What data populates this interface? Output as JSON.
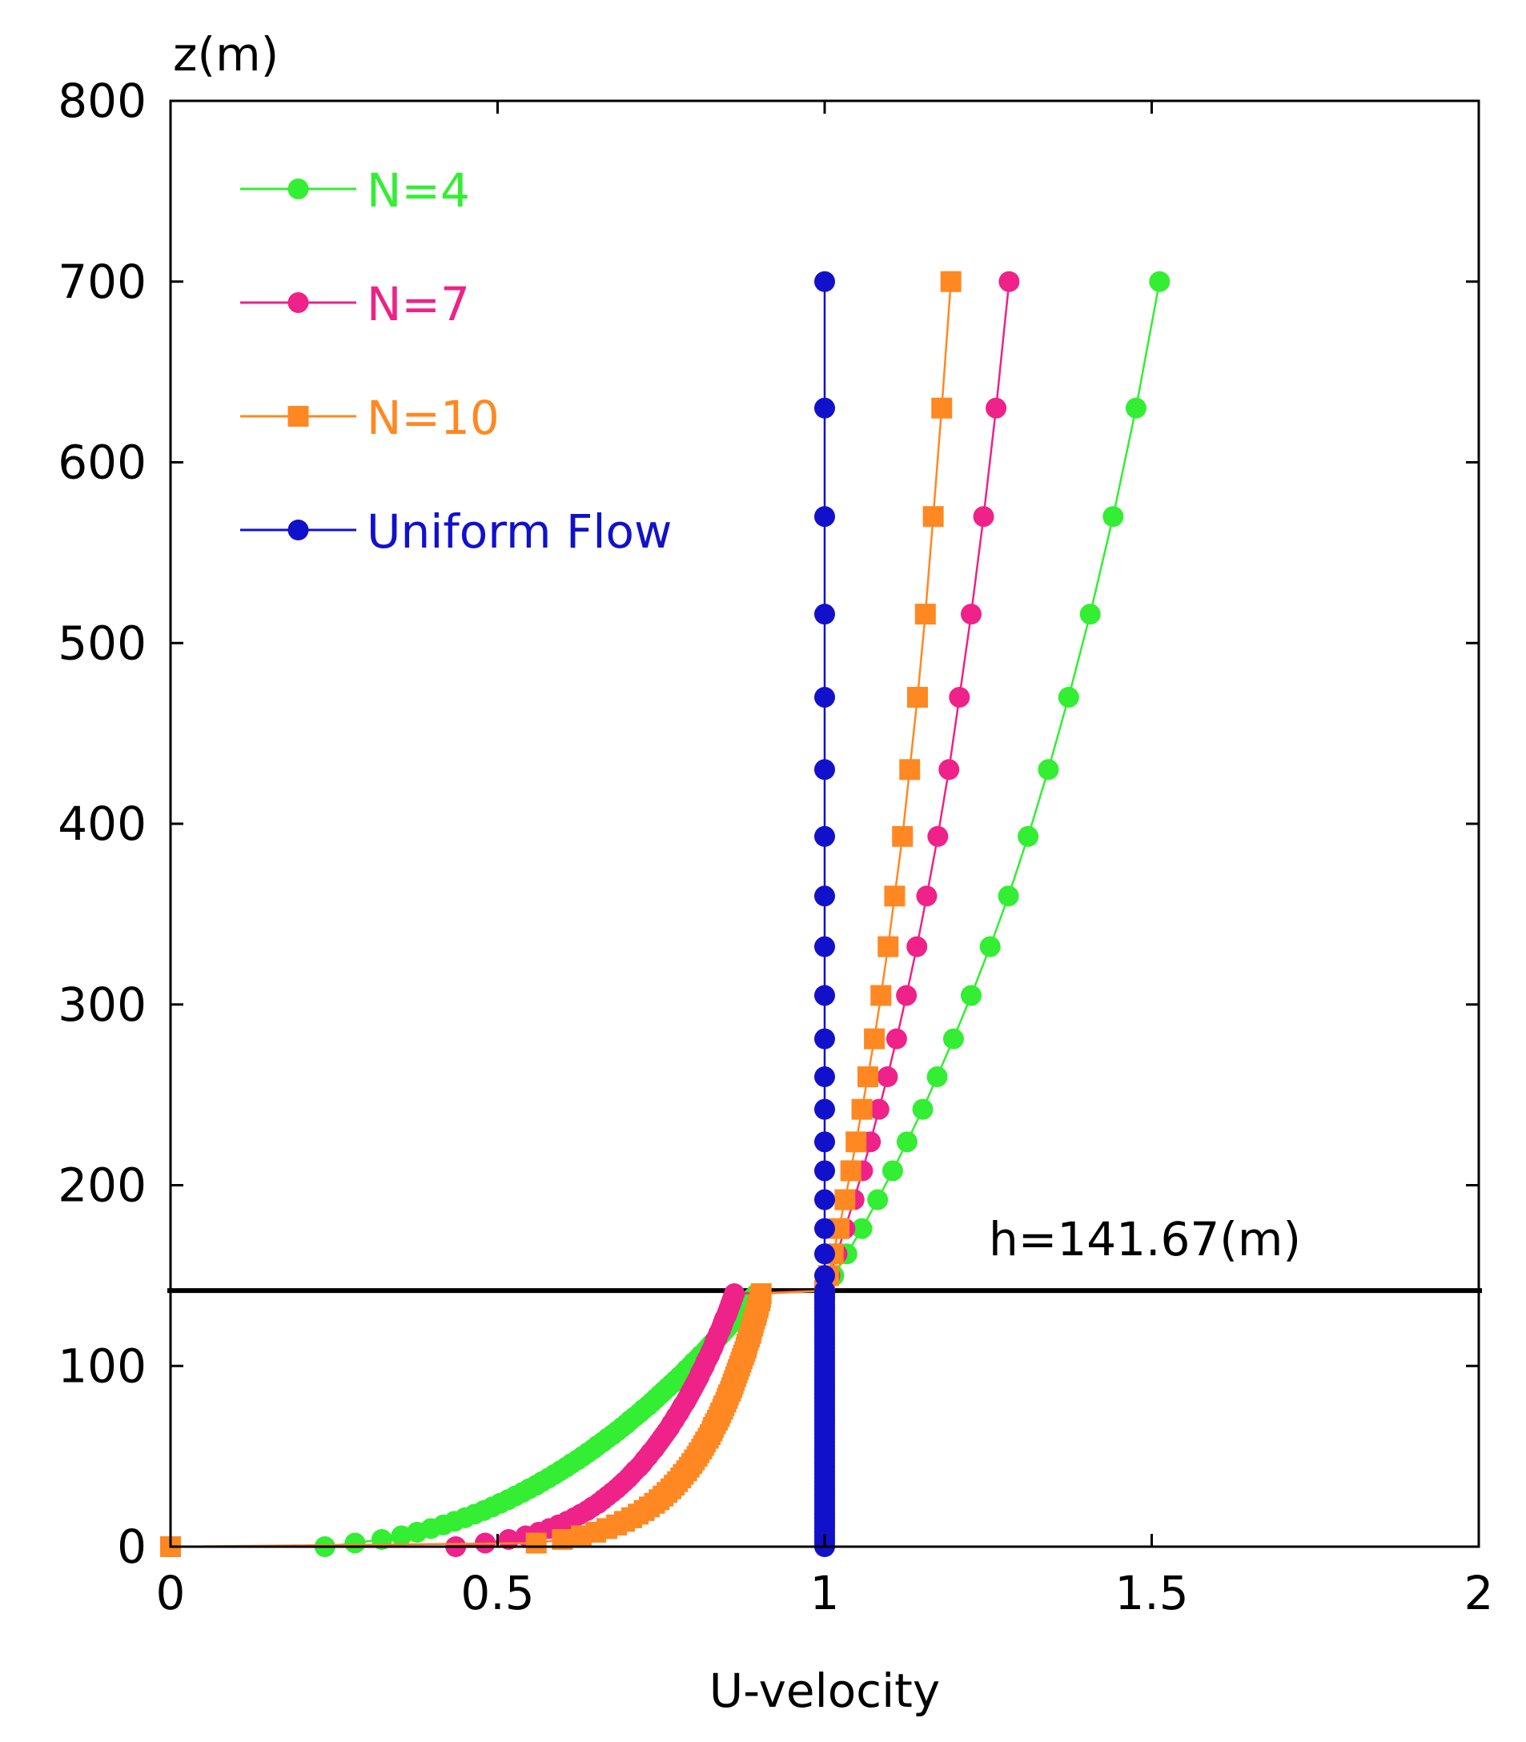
{
  "chart_data": {
    "type": "line",
    "title": "",
    "xlabel": "U-velocity",
    "ylabel": "z(m)",
    "xlim": [
      0,
      2
    ],
    "ylim": [
      0,
      800
    ],
    "xticks": [
      0,
      0.5,
      1,
      1.5,
      2
    ],
    "xtick_labels": [
      "0",
      "0.5",
      "1",
      "1.5",
      "2"
    ],
    "yticks": [
      0,
      100,
      200,
      300,
      400,
      500,
      600,
      700,
      800
    ],
    "ytick_labels": [
      "0",
      "100",
      "200",
      "300",
      "400",
      "500",
      "600",
      "700",
      "800"
    ],
    "grid": false,
    "legend_position": "top-left",
    "reference_line": {
      "y": 141.67,
      "label": "h=141.67(m)",
      "color": "#000000"
    },
    "z_levels": [
      0,
      2,
      4,
      6,
      8,
      10,
      12,
      14,
      16,
      18,
      20,
      22,
      24,
      26,
      28,
      30,
      32,
      34,
      36,
      38,
      40,
      42,
      44,
      46,
      48,
      50,
      52,
      54,
      56,
      58,
      60,
      62,
      64,
      66,
      68,
      70,
      72,
      74,
      76,
      78,
      80,
      82,
      84,
      86,
      88,
      90,
      92,
      94,
      96,
      98,
      100,
      102,
      104,
      106,
      108,
      110,
      112,
      114,
      116,
      118,
      120,
      122,
      124,
      126,
      128,
      130,
      132,
      134,
      136,
      138,
      140,
      141.67,
      150,
      162,
      176,
      192,
      208,
      224,
      242,
      260,
      281,
      305,
      332,
      360,
      393,
      430,
      470,
      516,
      570,
      630,
      700
    ],
    "series": [
      {
        "name": "N=4",
        "color": "#33ee33",
        "marker": "circle",
        "values": [
          0.236,
          0.282,
          0.323,
          0.353,
          0.377,
          0.398,
          0.417,
          0.434,
          0.45,
          0.465,
          0.479,
          0.492,
          0.504,
          0.516,
          0.527,
          0.538,
          0.548,
          0.559,
          0.568,
          0.578,
          0.587,
          0.596,
          0.605,
          0.613,
          0.622,
          0.63,
          0.638,
          0.646,
          0.653,
          0.661,
          0.668,
          0.676,
          0.683,
          0.69,
          0.697,
          0.703,
          0.71,
          0.717,
          0.723,
          0.73,
          0.736,
          0.742,
          0.748,
          0.754,
          0.76,
          0.766,
          0.772,
          0.778,
          0.784,
          0.789,
          0.795,
          0.8,
          0.806,
          0.811,
          0.817,
          0.822,
          0.827,
          0.832,
          0.838,
          0.843,
          0.848,
          0.853,
          0.858,
          0.863,
          0.867,
          0.872,
          0.877,
          0.882,
          0.887,
          0.891,
          0.896,
          1.0,
          1.014,
          1.034,
          1.057,
          1.081,
          1.104,
          1.126,
          1.15,
          1.172,
          1.197,
          1.224,
          1.253,
          1.281,
          1.311,
          1.342,
          1.373,
          1.406,
          1.441,
          1.476,
          1.512
        ]
      },
      {
        "name": "N=7",
        "color": "#ee2288",
        "marker": "circle",
        "values": [
          0.436,
          0.481,
          0.517,
          0.543,
          0.563,
          0.579,
          0.593,
          0.606,
          0.617,
          0.627,
          0.637,
          0.645,
          0.654,
          0.661,
          0.668,
          0.675,
          0.682,
          0.688,
          0.694,
          0.7,
          0.705,
          0.71,
          0.716,
          0.721,
          0.725,
          0.73,
          0.734,
          0.739,
          0.743,
          0.747,
          0.751,
          0.755,
          0.759,
          0.763,
          0.766,
          0.77,
          0.773,
          0.777,
          0.78,
          0.783,
          0.787,
          0.79,
          0.793,
          0.796,
          0.799,
          0.802,
          0.805,
          0.808,
          0.81,
          0.813,
          0.816,
          0.818,
          0.821,
          0.824,
          0.826,
          0.829,
          0.831,
          0.833,
          0.836,
          0.838,
          0.841,
          0.843,
          0.845,
          0.847,
          0.85,
          0.852,
          0.854,
          0.856,
          0.858,
          0.86,
          0.862,
          1.0,
          1.008,
          1.019,
          1.031,
          1.045,
          1.058,
          1.07,
          1.083,
          1.096,
          1.11,
          1.125,
          1.141,
          1.156,
          1.173,
          1.19,
          1.206,
          1.224,
          1.243,
          1.262,
          1.282
        ]
      },
      {
        "name": "N=10",
        "color": "#ff8822",
        "marker": "square",
        "values": [
          0.0,
          0.559,
          0.599,
          0.628,
          0.65,
          0.667,
          0.682,
          0.694,
          0.705,
          0.715,
          0.724,
          0.732,
          0.74,
          0.747,
          0.753,
          0.759,
          0.765,
          0.77,
          0.775,
          0.78,
          0.784,
          0.789,
          0.793,
          0.797,
          0.801,
          0.805,
          0.808,
          0.812,
          0.815,
          0.818,
          0.822,
          0.825,
          0.828,
          0.83,
          0.833,
          0.836,
          0.839,
          0.841,
          0.844,
          0.846,
          0.849,
          0.851,
          0.853,
          0.856,
          0.858,
          0.86,
          0.862,
          0.864,
          0.866,
          0.868,
          0.87,
          0.872,
          0.874,
          0.876,
          0.878,
          0.88,
          0.881,
          0.883,
          0.885,
          0.887,
          0.888,
          0.89,
          0.891,
          0.893,
          0.895,
          0.896,
          0.898,
          0.899,
          0.901,
          0.902,
          0.903,
          1.0,
          1.006,
          1.013,
          1.022,
          1.031,
          1.04,
          1.048,
          1.057,
          1.066,
          1.076,
          1.086,
          1.097,
          1.107,
          1.119,
          1.13,
          1.142,
          1.154,
          1.166,
          1.179,
          1.193
        ]
      },
      {
        "name": "Uniform Flow",
        "color": "#1111cc",
        "marker": "circle",
        "values": [
          1,
          1,
          1,
          1,
          1,
          1,
          1,
          1,
          1,
          1,
          1,
          1,
          1,
          1,
          1,
          1,
          1,
          1,
          1,
          1,
          1,
          1,
          1,
          1,
          1,
          1,
          1,
          1,
          1,
          1,
          1,
          1,
          1,
          1,
          1,
          1,
          1,
          1,
          1,
          1,
          1,
          1,
          1,
          1,
          1,
          1,
          1,
          1,
          1,
          1,
          1,
          1,
          1,
          1,
          1,
          1,
          1,
          1,
          1,
          1,
          1,
          1,
          1,
          1,
          1,
          1,
          1,
          1,
          1,
          1,
          1,
          1,
          1,
          1,
          1,
          1,
          1,
          1,
          1,
          1,
          1,
          1,
          1,
          1,
          1,
          1,
          1,
          1,
          1,
          1,
          1
        ]
      }
    ]
  }
}
